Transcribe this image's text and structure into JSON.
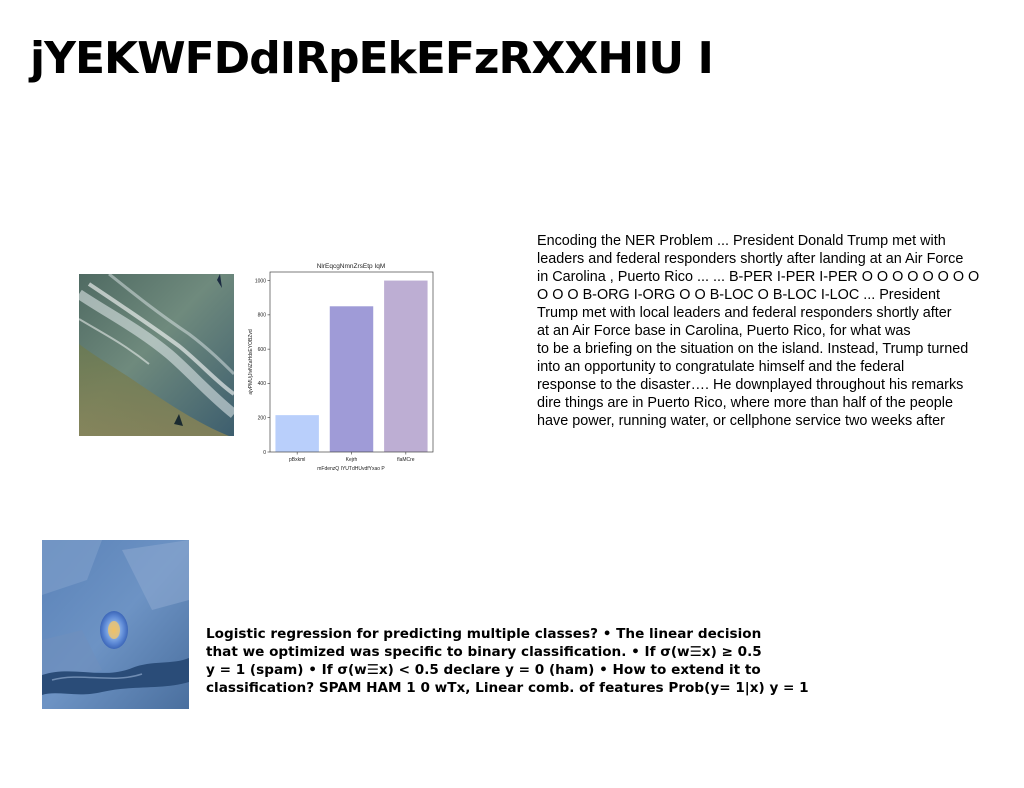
{
  "slide": {
    "title": "jYEKWFDdIRpEkEFzRXXHIU I"
  },
  "ner_paragraph": {
    "lines": [
      "Encoding the NER Problem ... President Donald Trump met with",
      "leaders and federal responders shortly after landing at an Air Force",
      "in Carolina , Puerto Rico ... ... B-PER I-PER I-PER O O O O O O O O",
      "O O O B-ORG I-ORG O O B-LOC O B-LOC I-LOC ... President",
      "Trump met with local leaders and federal responders shortly after",
      "at an Air Force base in Carolina, Puerto Rico, for what was",
      "to be a briefing on the situation on the island. Instead, Trump turned",
      "into an opportunity to congratulate himself and the federal",
      "response to the disaster…. He downplayed throughout his remarks",
      "dire things are in Puerto Rico, where more than half of the people",
      "have power, running water, or cellphone service two weeks after"
    ]
  },
  "logreg_paragraph": {
    "lines": [
      "Logistic regression for predicting multiple classes? • The linear decision",
      "that we optimized was specific to binary classification. • If σ(w☰x) ≥ 0.5",
      "y = 1 (spam) • If σ(w☰x) < 0.5 declare y = 0 (ham) • How to extend it to",
      "classification? SPAM HAM 1 0 wTx, Linear comb. of features Prob(y= 1|x) y = 1"
    ]
  },
  "chart_data": {
    "type": "bar",
    "title": "NlrEqcgNmnZrsEtp IqM",
    "xlabel": "mFdenzQ IYUTdHUvdfYxao P",
    "ylabel": "ajvPMUjJivNZaHdxEYOBZvd",
    "categories": [
      "pBxkml",
      "Kejrh",
      "flaMCre"
    ],
    "values": [
      215,
      850,
      1000
    ],
    "colors": [
      "#b9cffb",
      "#9f9bd7",
      "#bdaed3"
    ],
    "ylim": [
      0,
      1050
    ],
    "yticks": [
      0,
      200,
      400,
      600,
      800,
      1000
    ],
    "grid": false
  }
}
